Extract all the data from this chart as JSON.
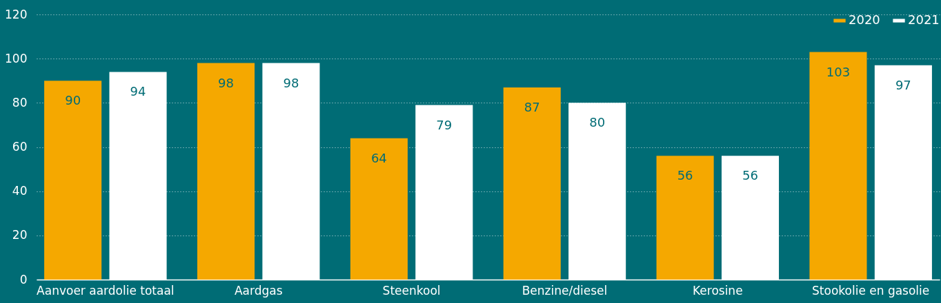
{
  "chart_data": {
    "type": "bar",
    "categories": [
      "Aanvoer aardolie totaal",
      "Aardgas",
      "Steenkool",
      "Benzine/diesel",
      "Kerosine",
      "Stookolie en gasolie"
    ],
    "series": [
      {
        "name": "2020",
        "color": "#f5a800",
        "values": [
          90,
          98,
          64,
          87,
          56,
          103
        ]
      },
      {
        "name": "2021",
        "color": "#ffffff",
        "values": [
          94,
          98,
          79,
          80,
          56,
          97
        ]
      }
    ],
    "ylim": [
      0,
      120
    ],
    "yticks": [
      0,
      20,
      40,
      60,
      80,
      100,
      120
    ],
    "grid": "y",
    "legend": "top right",
    "data_labels": true
  }
}
